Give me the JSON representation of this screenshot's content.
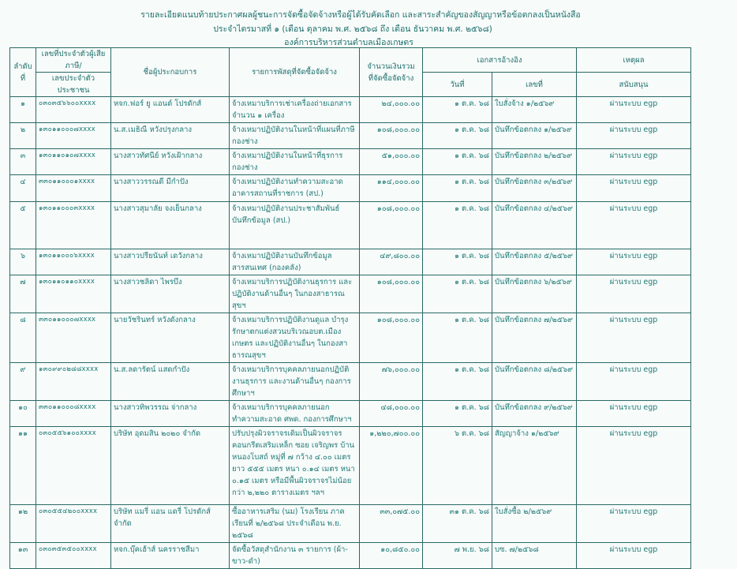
{
  "header": {
    "line1": "รายละเอียดแนบท้ายประกาศผลผู้ชนะการจัดซื้อจัดจ้างหรือผู้ได้รับคัดเลือก และสาระสำคัญของสัญญาหรือข้อตกลงเป็นหนังสือ",
    "line2": "ประจำไตรมาสที่ ๑ (เดือน ตุลาคม พ.ศ. ๒๕๖๘ ถึง  เดือน ธันวาคม พ.ศ. ๒๕๖๘)",
    "line3": "องค์การบริหารส่วนตำบลเมืองเกษตร"
  },
  "columns": {
    "seq": "ลำดับที่",
    "taxid_1": "เลขที่ประจำตัวผู้เสียภาษี/",
    "taxid_2": "เลขประจำตัวประชาชน",
    "vendor": "ชื่อผู้ประกอบการ",
    "item": "รายการพัสดุที่จัดซื้อจัดจ้าง",
    "amount_1": "จำนวนเงินรวม",
    "amount_2": "ที่จัดซื้อจัดจ้าง",
    "ref": "เอกสารอ้างอิง",
    "ref_date": "วันที่",
    "ref_no": "เลขที่",
    "reason_1": "เหตุผล",
    "reason_2": "สนับสนุน"
  },
  "rows": [
    {
      "seq": "๑",
      "taxid": "๐๓๐๓๕๖๖๐๐xxxx",
      "vendor": "หจก.ฟอร์ ยู แอนด์ โปรดักส์",
      "item": "จ้างเหมาบริการเช่าเครื่องถ่ายเอกสาร จำนวน ๑ เครื่อง",
      "amount": "๒๔,๐๐๐.๐๐",
      "date": "๑ ต.ค. ๖๘",
      "doc": "ใบสั่งจ้าง ๑/๒๕๖๙",
      "reason": "ผ่านระบบ egp"
    },
    {
      "seq": "๒",
      "taxid": "๑๓๐๑๑๐๐๐๗xxxx",
      "vendor": "น.ส.เมธิณี หวังปรุงกลาง",
      "item": "จ้างเหมาปฏิบัติงานในหน้าที่แผนที่ภาษี กองช่าง",
      "amount": "๑๐๘,๐๐๐.๐๐",
      "date": "๑ ต.ค. ๖๘",
      "doc": "บันทึกข้อตกลง ๑/๒๕๖๙",
      "reason": "ผ่านระบบ egp"
    },
    {
      "seq": "๓",
      "taxid": "๑๓๐๑๑๐๑๐๗xxxx",
      "vendor": "นางสาวทัศนีย์ หวังเฝ้ากลาง",
      "item": "จ้างเหมาปฏิบัติงานในหน้าที่ธุรการ กองช่าง",
      "amount": "๕๑,๐๐๐.๐๐",
      "date": "๑ ต.ค. ๖๘",
      "doc": "บันทึกข้อตกลง ๒/๒๕๖๙",
      "reason": "ผ่านระบบ egp"
    },
    {
      "seq": "๔",
      "taxid": "๓๓๐๑๑๐๐๐๑xxxx",
      "vendor": "นางสาววรรณดี มีกำปัง",
      "item": "จ้างเหมาปฏิบัติงานทำความสะอาดอาคารสถานที่ราชการ (สป.)",
      "amount": "๑๑๔,๐๐๐.๐๐",
      "date": "๑ ต.ค. ๖๘",
      "doc": "บันทึกข้อตกลง ๓/๒๕๖๙",
      "reason": "ผ่านระบบ egp"
    },
    {
      "seq": "๕",
      "taxid": "๑๓๐๑๑๐๐๐๓xxxx",
      "vendor": "นางสาวสุมาลัย จงเย็นกลาง",
      "item": "จ้างเหมาปฏิบัติงานประชาสัมพันธ์ บันทึกข้อมูล (สป.)",
      "amount": "๑๐๘,๐๐๐.๐๐",
      "date": "๑ ต.ค. ๖๘",
      "doc": "บันทึกข้อตกลง ๔/๒๕๖๙",
      "reason": "ผ่านระบบ egp"
    },
    {
      "seq": "๖",
      "taxid": "๑๓๐๑๑๐๐๐๖xxxx",
      "vendor": "นางสาวปรียนันท์ เดวังกลาง",
      "item": "จ้างเหมาปฏิบัติงานบันทึกข้อมูลสารสนเทศ (กองคลัง)",
      "amount": "๔๙,๘๐๐.๐๐",
      "date": "๑ ต.ค. ๖๘",
      "doc": "บันทึกข้อตกลง ๕/๒๕๖๙",
      "reason": "ผ่านระบบ egp"
    },
    {
      "seq": "๗",
      "taxid": "๑๓๐๑๑๐๑๑๐xxxx",
      "vendor": "นางสาวชลิดา ไพรบึง",
      "item": "จ้างเหมาบริการปฏิบัติงานธุรการ และปฏิบัติงานด้านอื่นๆ ในกองสาธารณสุขฯ",
      "amount": "๑๐๘,๐๐๐.๐๐",
      "date": "๑ ต.ค. ๖๘",
      "doc": "บันทึกข้อตกลง ๖/๒๕๖๙",
      "reason": "ผ่านระบบ egp"
    },
    {
      "seq": "๘",
      "taxid": "๓๓๐๑๑๐๐๐๗xxxx",
      "vendor": "นายวัชรินทร์ หวังดังกลาง",
      "item": "จ้างเหมาบริการปฏิบัติงานดูแล บำรุงรักษาตกแต่งสวนบริเวณอบต.เมืองเกษตร และปฏิบัติงานอื่นๆ ในกองสาธารณสุขฯ",
      "amount": "๑๐๘,๐๐๐.๐๐",
      "date": "๑ ต.ค. ๖๘",
      "doc": "บันทึกข้อตกลง ๗/๒๕๖๙",
      "reason": "ผ่านระบบ egp"
    },
    {
      "seq": "๙",
      "taxid": "๑๓๐๙๙๐๒๘๘xxxx",
      "vendor": "น.ส.ลดารัตน์ แสดกำปัง",
      "item": "จ้างเหมาบริการบุคคลภายนอกปฏิบัติงานธุรการ และงานด้านอื่นๆ กองการศึกษาฯ",
      "amount": "๗๖,๐๐๐.๐๐",
      "date": "๑ ต.ค. ๖๘",
      "doc": "บันทึกข้อตกลง ๘/๒๕๖๙",
      "reason": "ผ่านระบบ egp"
    },
    {
      "seq": "๑๐",
      "taxid": "๓๓๐๑๑๐๐๐๘xxxx",
      "vendor": "นางสาวทิพวรรณ จ่ากลาง",
      "item": "จ้างเหมาบริการบุคคลภายนอกทำความสะอาด ศพด. กองการศึกษาฯ",
      "amount": "๔๘,๐๐๐.๐๐",
      "date": "๑ ต.ค. ๖๘",
      "doc": "บันทึกข้อตกลง ๙/๒๕๖๙",
      "reason": "ผ่านระบบ egp"
    },
    {
      "seq": "๑๑",
      "taxid": "๐๓๐๕๕๖๑๐๐xxxx",
      "vendor": "บริษัท อุดมสิน ๒๐๒๐ จำกัด",
      "item": "ปรับปรุงผิวจราจรเดิมเป็นผิวจราจรคอนกรีตเสริมเหล็ก ซอย เจริญพร บ้านหนองโบสถ์ หมู่ที่ ๗ กว้าง ๔.๐๐ เมตร ยาว ๕๕๕ เมตร หนา ๐.๑๔ เมตร หนา ๐.๑๕ เมตร หรือมีพื้นผิวจราจรไม่น้อยกว่า ๒,๒๒๐ ตารางเมตร ฯลฯ",
      "amount": "๑,๒๒๐,๗๐๐.๐๐",
      "date": "๖ ต.ค. ๖๘",
      "doc": "สัญญาจ้าง ๑/๒๕๖๙",
      "reason": "ผ่านระบบ egp"
    },
    {
      "seq": "๑๒",
      "taxid": "๐๓๐๕๕๔๒๐๐xxxx",
      "vendor": "บริษัท แมรี่ แอน แดรี่ โปรดักส์ จำกัด",
      "item": "ซื้ออาหารเสริม (นม) โรงเรียน ภาคเรียนที่ ๒/๒๕๖๘ ประจำเดือน พ.ย. ๒๕๖๘",
      "amount": "๓๓,๐๗๕.๐๐",
      "date": "๓๑ ต.ค. ๖๘",
      "doc": "ใบสั่งซื้อ ๒/๒๕๖๙",
      "reason": "ผ่านระบบ egp"
    },
    {
      "seq": "๑๓",
      "taxid": "๐๓๐๓๕๓๕๐๐xxxx",
      "vendor": "หจก.บุ๊คเฮ้าส์ นครราชสีมา",
      "item": "จัดซื้อวัสดุสำนักงาน ๓ รายการ (ผ้า-ขาว-ดำ)",
      "amount": "๑๐,๘๕๐.๐๐",
      "date": "๗ พ.ย. ๖๘",
      "doc": "บซ. ๗/๒๕๖๘",
      "reason": "ผ่านระบบ egp"
    }
  ],
  "colors": {
    "ink": "#1f7a76",
    "rule": "#2a6a66",
    "paper": "#f7fbfa"
  }
}
